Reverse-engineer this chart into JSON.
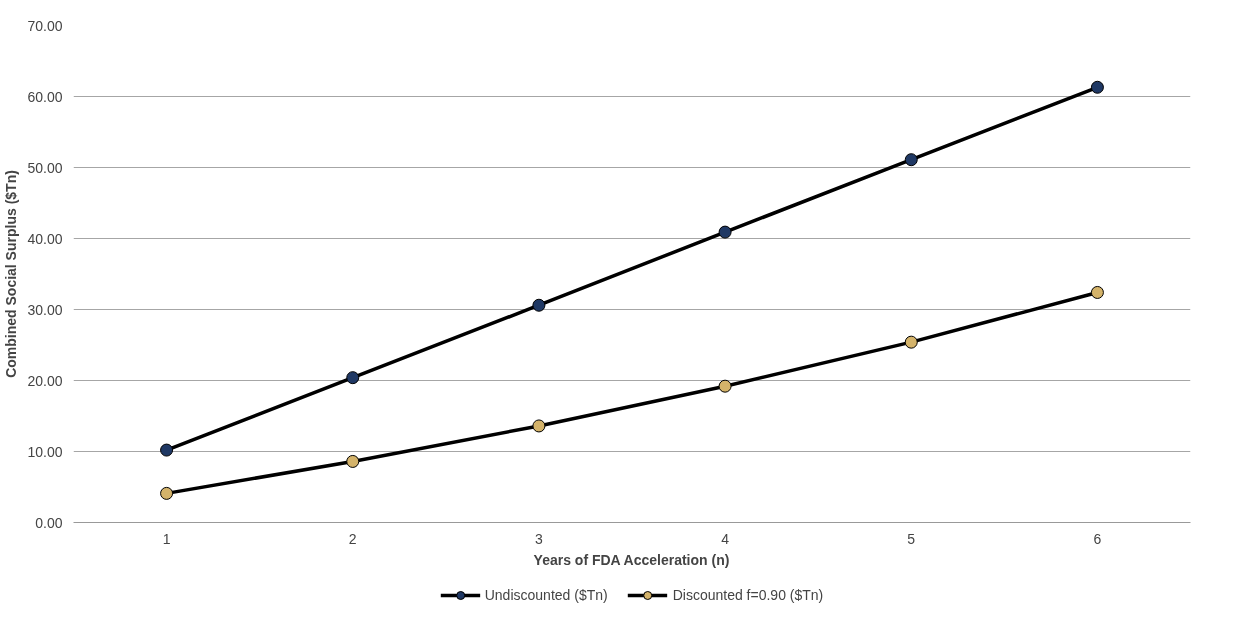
{
  "chart_data": {
    "type": "line",
    "xlabel": "Years of FDA Acceleration (n)",
    "ylabel": "Combined Social Surplus ($Tn)",
    "categories": [
      "1",
      "2",
      "3",
      "4",
      "5",
      "6"
    ],
    "series": [
      {
        "name": "Undiscounted ($Tn)",
        "color": "#1f3864",
        "values": [
          10.2,
          20.4,
          30.6,
          40.9,
          51.1,
          61.3
        ]
      },
      {
        "name": "Discounted f=0.90 ($Tn)",
        "color": "#d4b36a",
        "values": [
          4.1,
          8.6,
          13.6,
          19.2,
          25.4,
          32.4
        ]
      }
    ],
    "ylim": [
      0,
      70
    ],
    "yticks": [
      {
        "value": 0,
        "label": "0.00"
      },
      {
        "value": 10,
        "label": "10.00"
      },
      {
        "value": 20,
        "label": "20.00"
      },
      {
        "value": 30,
        "label": "30.00"
      },
      {
        "value": 40,
        "label": "40.00"
      },
      {
        "value": 50,
        "label": "50.00"
      },
      {
        "value": 60,
        "label": "60.00"
      },
      {
        "value": 70,
        "label": "70.00"
      }
    ],
    "grid": "y",
    "legend": "bottom",
    "marker": "circle",
    "line_style": "solid"
  }
}
